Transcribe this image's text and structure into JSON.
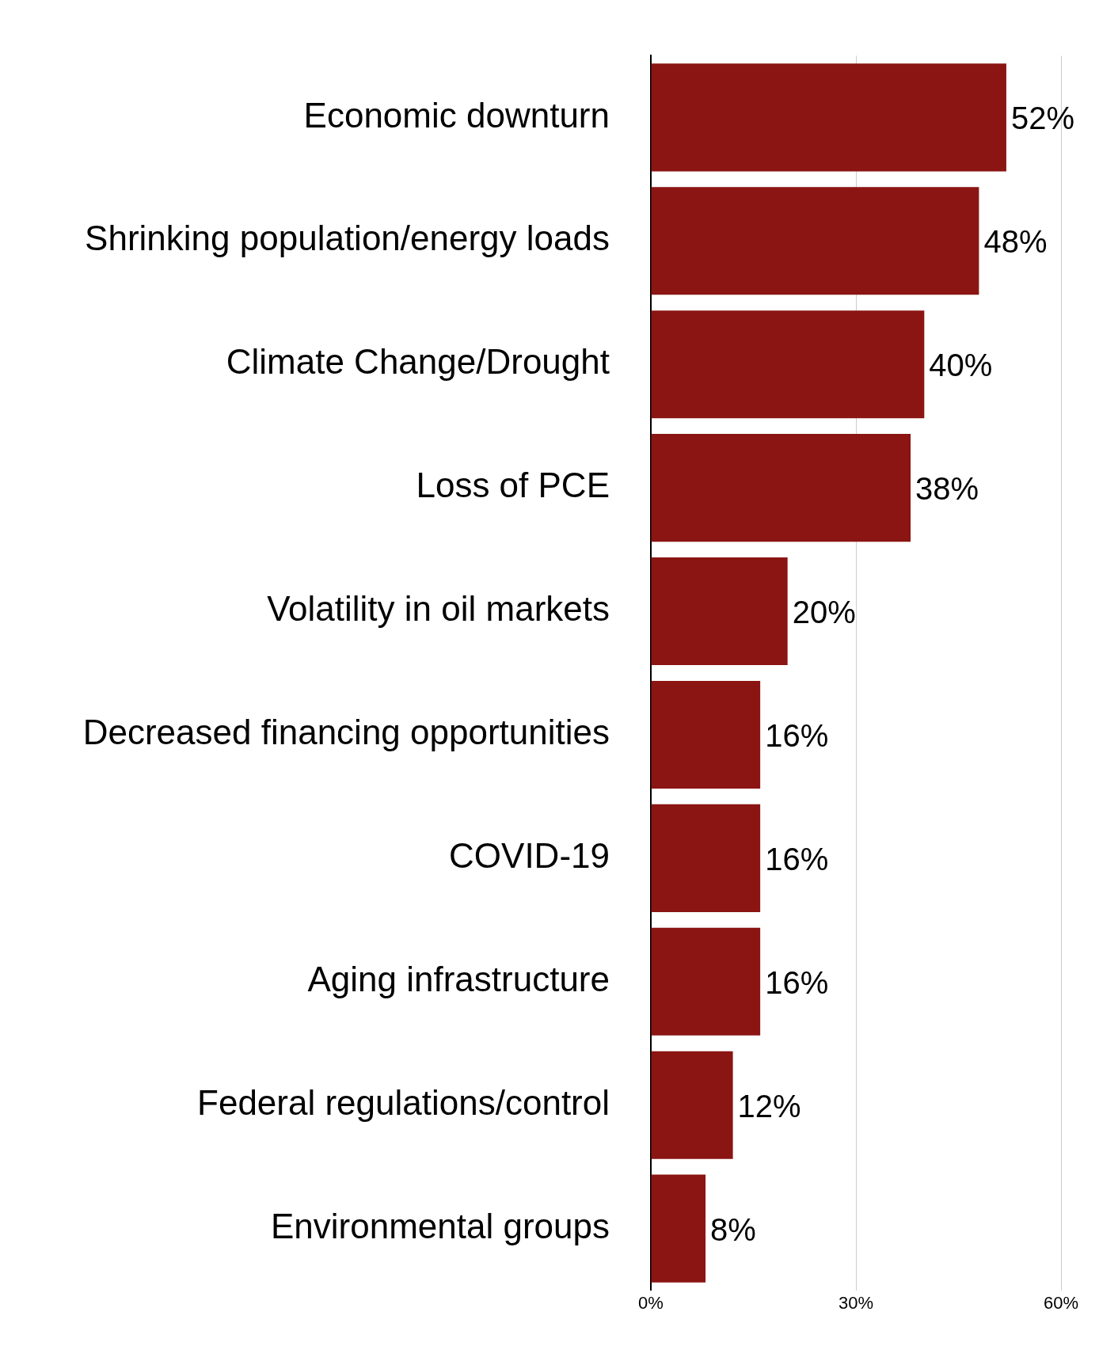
{
  "chart_data": {
    "type": "bar",
    "orientation": "horizontal",
    "categories": [
      "Economic downturn",
      "Shrinking population/energy loads",
      "Climate Change/Drought",
      "Loss of PCE",
      "Volatility in oil markets",
      "Decreased financing opportunities",
      "COVID-19",
      "Aging infrastructure",
      "Federal regulations/control",
      "Environmental groups"
    ],
    "values": [
      52,
      48,
      40,
      38,
      20,
      16,
      16,
      16,
      12,
      8
    ],
    "value_labels": [
      "52%",
      "48%",
      "40%",
      "38%",
      "20%",
      "16%",
      "16%",
      "16%",
      "12%",
      "8%"
    ],
    "color": "#8a1512",
    "xlim": [
      0,
      60
    ],
    "xticks": [
      {
        "value": 0,
        "label": "0%"
      },
      {
        "value": 30,
        "label": "30%"
      },
      {
        "value": 60,
        "label": "60%"
      }
    ],
    "grid": "x",
    "legend": false
  }
}
